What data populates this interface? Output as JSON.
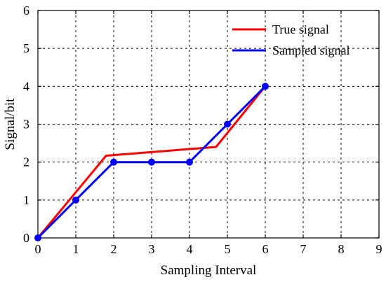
{
  "chart_data": {
    "type": "line",
    "title": "",
    "xlabel": "Sampling Interval",
    "ylabel": "Signal/bit",
    "xlim": [
      0,
      9
    ],
    "ylim": [
      0,
      6
    ],
    "xticks": [
      "0",
      "1",
      "2",
      "3",
      "4",
      "5",
      "6",
      "7",
      "8",
      "9"
    ],
    "yticks": [
      "0",
      "1",
      "2",
      "3",
      "4",
      "5",
      "6"
    ],
    "grid": true,
    "legend_position": "top-right",
    "series": [
      {
        "name": "True signal",
        "color": "#ff0000",
        "markers": false,
        "x": [
          0,
          1.8,
          4.7,
          6
        ],
        "y": [
          0,
          2.17,
          2.4,
          4
        ]
      },
      {
        "name": "Sampled signal",
        "color": "#0000ff",
        "markers": true,
        "x": [
          0,
          1,
          2,
          3,
          4,
          5,
          6
        ],
        "y": [
          0,
          1,
          2,
          2,
          2,
          3,
          4
        ]
      }
    ]
  }
}
